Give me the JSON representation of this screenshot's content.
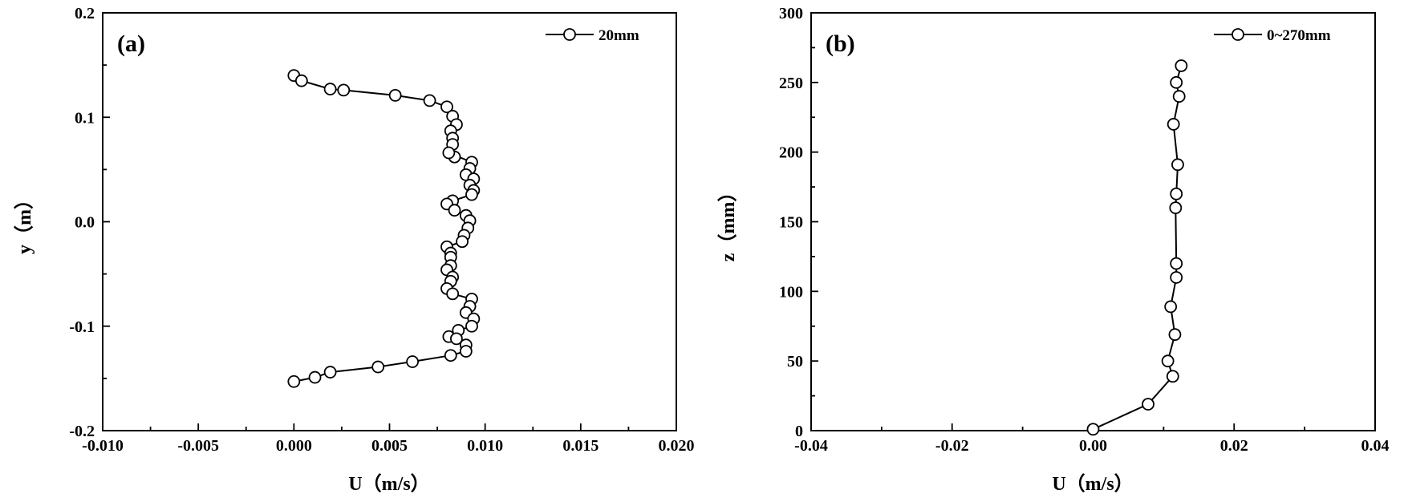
{
  "chart_data": [
    {
      "type": "line",
      "panel_label": "(a)",
      "xlabel": "U（m/s）",
      "ylabel": "y（m）",
      "xlim": [
        -0.01,
        0.02
      ],
      "ylim": [
        -0.2,
        0.2
      ],
      "x_ticks": [
        "-0.010",
        "-0.005",
        "0.000",
        "0.005",
        "0.010",
        "0.015",
        "0.020"
      ],
      "y_ticks": [
        "-0.2",
        "-0.1",
        "0.0",
        "0.1",
        "0.2"
      ],
      "grid": false,
      "legend_position": "top-right",
      "series": [
        {
          "name": "20mm",
          "points": [
            [
              0.0,
              0.14
            ],
            [
              0.0004,
              0.135
            ],
            [
              0.0019,
              0.127
            ],
            [
              0.0026,
              0.126
            ],
            [
              0.0053,
              0.121
            ],
            [
              0.0071,
              0.116
            ],
            [
              0.008,
              0.11
            ],
            [
              0.0083,
              0.101
            ],
            [
              0.0085,
              0.093
            ],
            [
              0.0082,
              0.087
            ],
            [
              0.0083,
              0.08
            ],
            [
              0.0083,
              0.074
            ],
            [
              0.0084,
              0.062
            ],
            [
              0.0081,
              0.066
            ],
            [
              0.0093,
              0.057
            ],
            [
              0.0092,
              0.051
            ],
            [
              0.009,
              0.045
            ],
            [
              0.0094,
              0.041
            ],
            [
              0.0092,
              0.035
            ],
            [
              0.0094,
              0.03
            ],
            [
              0.0093,
              0.026
            ],
            [
              0.0083,
              0.02
            ],
            [
              0.008,
              0.017
            ],
            [
              0.0084,
              0.011
            ],
            [
              0.009,
              0.006
            ],
            [
              0.0092,
              0.001
            ],
            [
              0.0091,
              -0.006
            ],
            [
              0.0089,
              -0.013
            ],
            [
              0.0088,
              -0.019
            ],
            [
              0.008,
              -0.024
            ],
            [
              0.0082,
              -0.03
            ],
            [
              0.0082,
              -0.034
            ],
            [
              0.0082,
              -0.042
            ],
            [
              0.008,
              -0.046
            ],
            [
              0.0083,
              -0.053
            ],
            [
              0.0082,
              -0.057
            ],
            [
              0.008,
              -0.064
            ],
            [
              0.0083,
              -0.069
            ],
            [
              0.0093,
              -0.074
            ],
            [
              0.0092,
              -0.081
            ],
            [
              0.009,
              -0.087
            ],
            [
              0.0094,
              -0.093
            ],
            [
              0.0093,
              -0.1
            ],
            [
              0.0086,
              -0.104
            ],
            [
              0.0081,
              -0.11
            ],
            [
              0.0085,
              -0.112
            ],
            [
              0.009,
              -0.118
            ],
            [
              0.009,
              -0.124
            ],
            [
              0.0082,
              -0.128
            ],
            [
              0.0062,
              -0.134
            ],
            [
              0.0044,
              -0.139
            ],
            [
              0.0019,
              -0.144
            ],
            [
              0.0011,
              -0.149
            ],
            [
              0.0,
              -0.153
            ]
          ]
        }
      ]
    },
    {
      "type": "line",
      "panel_label": "(b)",
      "xlabel": "U（m/s）",
      "ylabel": "z（mm）",
      "xlim": [
        -0.04,
        0.04
      ],
      "ylim": [
        0,
        300
      ],
      "x_ticks": [
        "-0.04",
        "-0.02",
        "0.00",
        "0.02",
        "0.04"
      ],
      "y_ticks": [
        "0",
        "50",
        "100",
        "150",
        "200",
        "250",
        "300"
      ],
      "grid": false,
      "legend_position": "top-right",
      "series": [
        {
          "name": "0~270mm",
          "points": [
            [
              0.0,
              1
            ],
            [
              0.0078,
              19
            ],
            [
              0.0113,
              39
            ],
            [
              0.0106,
              50
            ],
            [
              0.0116,
              69
            ],
            [
              0.011,
              89
            ],
            [
              0.0118,
              110
            ],
            [
              0.0118,
              120
            ],
            [
              0.0117,
              160
            ],
            [
              0.0118,
              170
            ],
            [
              0.012,
              191
            ],
            [
              0.0114,
              220
            ],
            [
              0.0122,
              240
            ],
            [
              0.0118,
              250
            ],
            [
              0.0125,
              262
            ]
          ]
        }
      ]
    }
  ]
}
